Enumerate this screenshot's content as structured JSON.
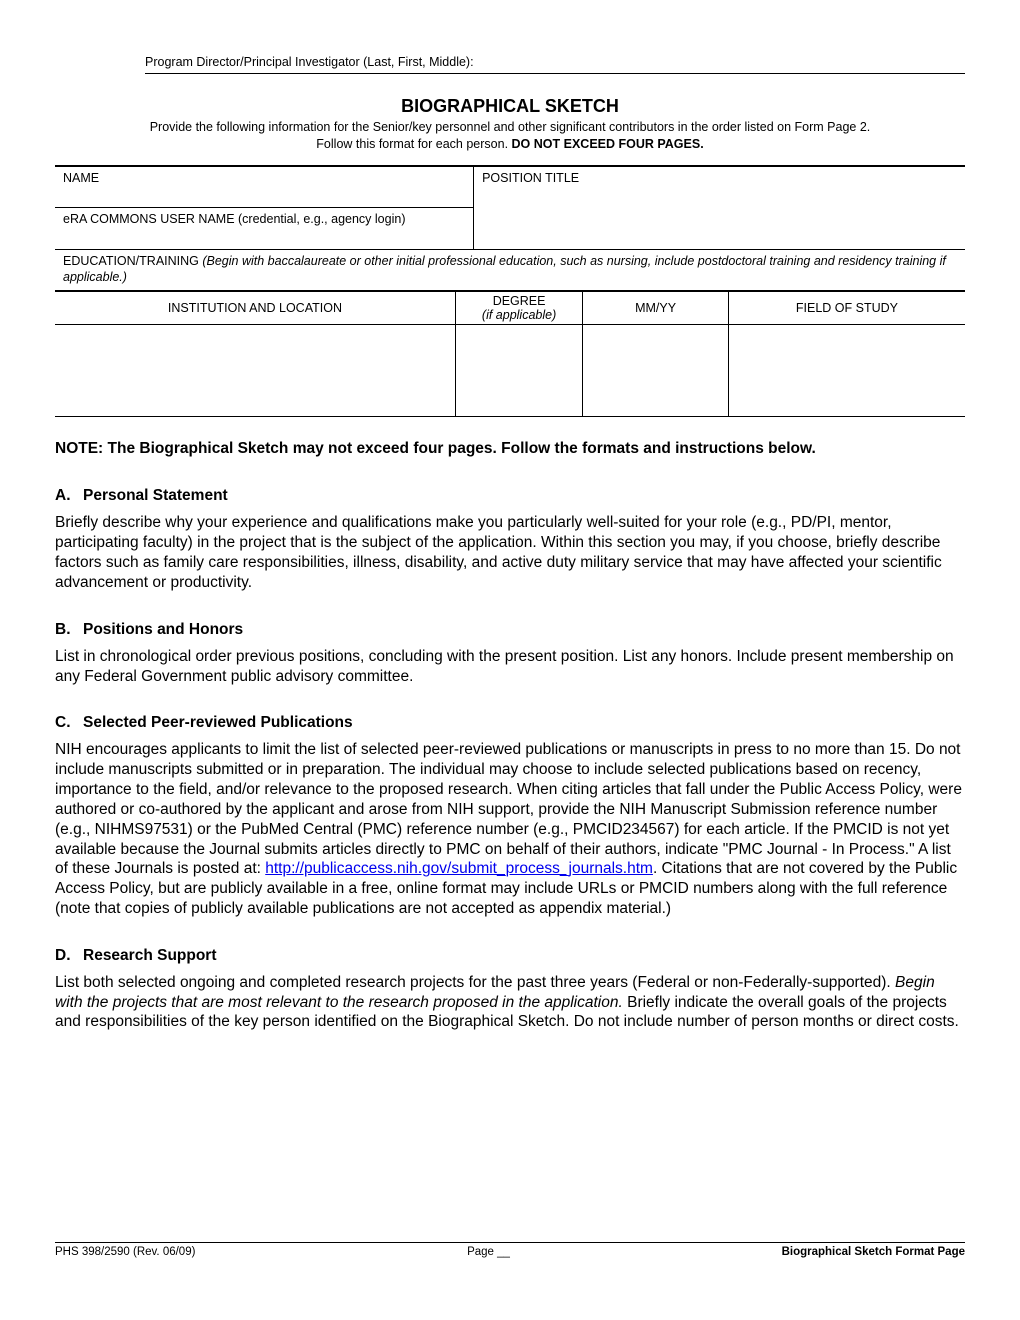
{
  "header": {
    "pd_pi_label": "Program Director/Principal Investigator (Last, First, Middle):"
  },
  "title": "BIOGRAPHICAL SKETCH",
  "subtitle_line1": "Provide the following information for the Senior/key personnel and other significant contributors in the order listed on Form Page 2.",
  "subtitle_line2a": "Follow this format for each person.  ",
  "subtitle_line2b": "DO NOT EXCEED FOUR PAGES.",
  "form": {
    "name_label": "NAME",
    "position_label": "POSITION TITLE",
    "era_label": "eRA COMMONS USER NAME (credential, e.g., agency login)",
    "edu_label_a": "EDUCATION/TRAINING  ",
    "edu_label_b": "(Begin with baccalaureate or other initial professional education, such as nursing, include postdoctoral training and residency training if applicable.)"
  },
  "edu_headers": {
    "institution": "INSTITUTION AND LOCATION",
    "degree_a": "DEGREE",
    "degree_b": "(if applicable)",
    "mmyy": "MM/YY",
    "field": "FIELD OF STUDY"
  },
  "note": "NOTE: The Biographical Sketch may not exceed four pages. Follow the formats and instructions below.",
  "sections": {
    "a": {
      "letter": "A.",
      "heading": "Personal Statement",
      "body": "Briefly describe why your experience and qualifications make you particularly well-suited for your role (e.g., PD/PI, mentor, participating faculty) in the project that is the subject of the application.  Within this section you may, if you choose, briefly describe factors such as family care responsibilities, illness, disability, and active duty military service that may have affected your scientific advancement or productivity."
    },
    "b": {
      "letter": "B.",
      "heading": "Positions and Honors",
      "body": "List in chronological order previous positions, concluding with the present position. List any honors. Include present membership on any Federal Government public advisory committee."
    },
    "c": {
      "letter": "C.",
      "heading": "Selected Peer-reviewed Publications",
      "body_pre": "NIH encourages applicants to limit the list of selected peer-reviewed publications or manuscripts in press to no more than 15. Do not include manuscripts submitted or in preparation. The individual may choose to include selected publications based on recency, importance to the field, and/or relevance to the proposed research. When citing articles that fall under the Public Access Policy, were authored or co-authored by the applicant and arose from NIH support, provide the NIH Manuscript Submission reference number (e.g., NIHMS97531) or the PubMed Central (PMC) reference number (e.g., PMCID234567) for each article. If the PMCID is not yet available because the Journal submits articles directly to PMC on behalf of their authors, indicate \"PMC Journal - In Process.\" A list of these Journals is posted at: ",
      "link": "http://publicaccess.nih.gov/submit_process_journals.htm",
      "body_post": ". Citations that are not covered by the Public Access Policy, but are publicly available in a free, online format may include URLs or PMCID numbers along with the full reference (note that copies of publicly available publications are not accepted as appendix material.)"
    },
    "d": {
      "letter": "D.",
      "heading": "Research Support",
      "body_a": "List both selected ongoing and completed research projects for the past three years (Federal or non-Federally-supported). ",
      "body_italic": "Begin with the projects that are most relevant to the research proposed in the application.",
      "body_b": " Briefly indicate the overall goals of the projects and responsibilities of the key person identified on the Biographical Sketch. Do not include number of person months or direct costs."
    }
  },
  "footer": {
    "left": "PHS 398/2590 (Rev. 06/09)",
    "center": "Page __",
    "right": "Biographical Sketch Format Page"
  }
}
